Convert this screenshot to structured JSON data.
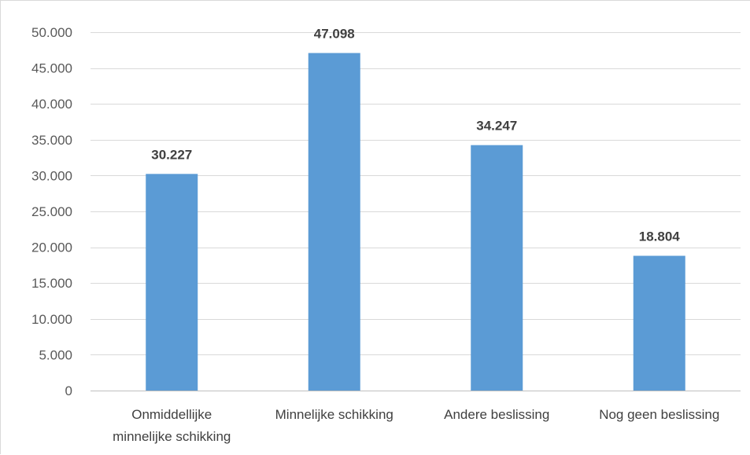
{
  "chart_data": {
    "type": "bar",
    "title": "",
    "xlabel": "",
    "ylabel": "",
    "categories": [
      [
        "Onmiddellijke",
        "minnelijke schikking"
      ],
      [
        "Minnelijke schikking"
      ],
      [
        "Andere beslissing"
      ],
      [
        "Nog geen beslissing"
      ]
    ],
    "values": [
      30227,
      47098,
      34247,
      18804
    ],
    "data_labels": [
      "30.227",
      "47.098",
      "34.247",
      "18.804"
    ],
    "ylim": [
      0,
      50000
    ],
    "yticks": [
      0,
      5000,
      10000,
      15000,
      20000,
      25000,
      30000,
      35000,
      40000,
      45000,
      50000
    ],
    "ytick_labels": [
      "0",
      "5.000",
      "10.000",
      "15.000",
      "20.000",
      "25.000",
      "30.000",
      "35.000",
      "40.000",
      "45.000",
      "50.000"
    ],
    "grid": true,
    "legend": "none",
    "bar_color": "#5b9bd5"
  }
}
